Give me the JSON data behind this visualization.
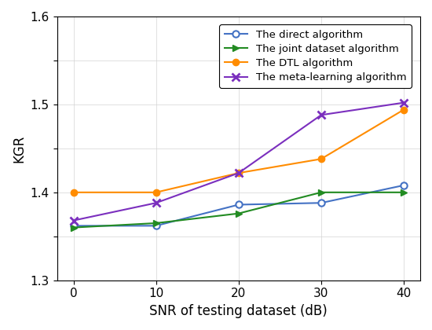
{
  "snr": [
    0,
    10,
    20,
    30,
    40
  ],
  "direct": [
    1.362,
    1.362,
    1.386,
    1.388,
    1.408
  ],
  "joint": [
    1.36,
    1.365,
    1.376,
    1.4,
    1.4
  ],
  "dtl": [
    1.4,
    1.4,
    1.422,
    1.438,
    1.494
  ],
  "meta": [
    1.368,
    1.388,
    1.422,
    1.488,
    1.502
  ],
  "direct_color": "#4472C4",
  "joint_color": "#228B22",
  "dtl_color": "#FF8C00",
  "meta_color": "#7B2FBE",
  "direct_label": "The direct algorithm",
  "joint_label": "The joint dataset algorithm",
  "dtl_label": "The DTL algorithm",
  "meta_label": "The meta-learning algorithm",
  "xlabel": "SNR of testing dataset (dB)",
  "ylabel": "KGR",
  "xlim": [
    -2,
    42
  ],
  "ylim": [
    1.3,
    1.6
  ],
  "ytick_vals": [
    1.3,
    1.35,
    1.4,
    1.45,
    1.5,
    1.55,
    1.6
  ],
  "ytick_labels": [
    "1.3",
    "",
    "1.4",
    "",
    "1.5",
    "",
    "1.6"
  ],
  "xticks": [
    0,
    10,
    20,
    30,
    40
  ]
}
